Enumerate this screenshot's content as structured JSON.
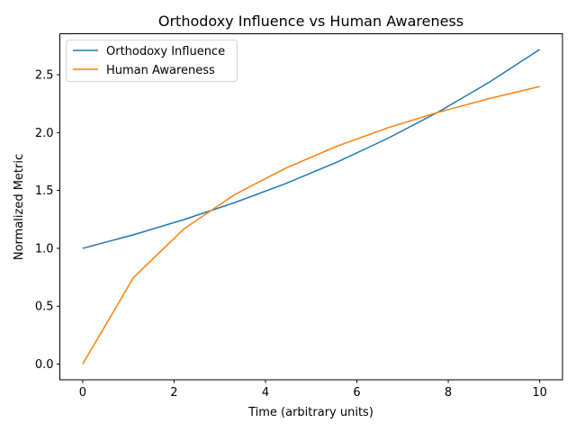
{
  "chart_data": {
    "type": "line",
    "title": "Orthodoxy Influence vs Human Awareness",
    "xlabel": "Time (arbitrary units)",
    "ylabel": "Normalized Metric",
    "xlim": [
      -0.5,
      10.5
    ],
    "ylim": [
      -0.136,
      2.854
    ],
    "xticks": [
      0,
      2,
      4,
      6,
      8,
      10
    ],
    "xtick_labels": [
      "0",
      "2",
      "4",
      "6",
      "8",
      "10"
    ],
    "yticks": [
      0,
      0.5,
      1.0,
      1.5,
      2.0,
      2.5
    ],
    "ytick_labels": [
      "0.0",
      "0.5",
      "1.0",
      "1.5",
      "2.0",
      "2.5"
    ],
    "grid": false,
    "legend_position": "top-left",
    "x": [
      0,
      1.111,
      2.222,
      3.333,
      4.444,
      5.556,
      6.667,
      7.778,
      8.889,
      10
    ],
    "series": [
      {
        "name": "Orthodoxy Influence",
        "color": "#1f77b4",
        "values": [
          1.0,
          1.117,
          1.249,
          1.396,
          1.56,
          1.743,
          1.948,
          2.177,
          2.433,
          2.718
        ]
      },
      {
        "name": "Human Awareness",
        "color": "#ff7f0e",
        "values": [
          0.0,
          0.747,
          1.17,
          1.466,
          1.693,
          1.881,
          2.04,
          2.175,
          2.293,
          2.398
        ]
      }
    ]
  }
}
